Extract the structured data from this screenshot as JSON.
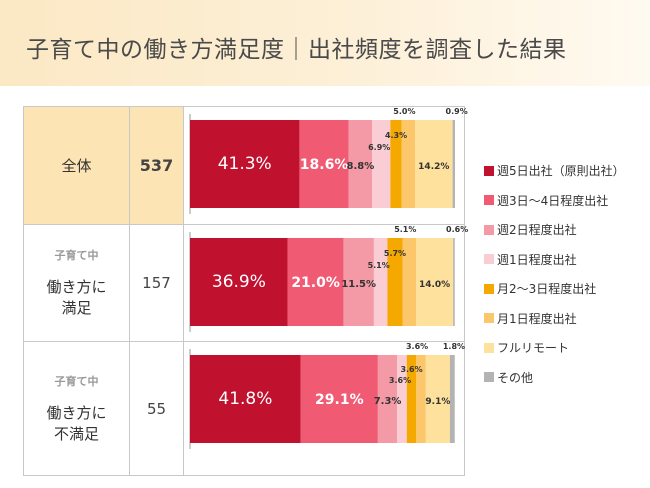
{
  "title": "子育て中の働き方満足度｜出社頻度を調査した結果",
  "rows": [
    {
      "sub": "",
      "main": "全体",
      "count": "537"
    },
    {
      "sub": "子育て中",
      "main": "働き方に\n満足",
      "count": "157"
    },
    {
      "sub": "子育て中",
      "main": "働き方に\n不満足",
      "count": "55"
    }
  ],
  "chart_data": {
    "type": "bar",
    "orientation": "horizontal",
    "stacked": true,
    "percent": true,
    "categories": [
      "全体",
      "子育て中 働き方に満足",
      "子育て中 働き方に不満足"
    ],
    "series": [
      {
        "name": "週5日出社（原則出社）",
        "color": "#c0122f",
        "values": [
          41.3,
          36.9,
          41.8
        ],
        "labels": [
          "41.3%",
          "36.9%",
          "41.8%"
        ]
      },
      {
        "name": "週3日〜4日程度出社",
        "color": "#f05a73",
        "values": [
          18.6,
          21.0,
          29.1
        ],
        "labels": [
          "18.6%",
          "21.0%",
          "29.1%"
        ]
      },
      {
        "name": "週2日程度出社",
        "color": "#f39aa6",
        "values": [
          8.8,
          11.5,
          7.3
        ],
        "labels": [
          "8.8%",
          "11.5%",
          "7.3%"
        ]
      },
      {
        "name": "週1日程度出社",
        "color": "#f9cdd3",
        "values": [
          6.9,
          5.1,
          3.6
        ],
        "labels": [
          "6.9%",
          "5.1%",
          "3.6%"
        ]
      },
      {
        "name": "月2〜3日程度出社",
        "color": "#f5a800",
        "values": [
          4.3,
          5.7,
          3.6
        ],
        "labels": [
          "4.3%",
          "5.7%",
          "3.6%"
        ]
      },
      {
        "name": "月1日程度出社",
        "color": "#fcc76b",
        "values": [
          5.0,
          5.1,
          3.6
        ],
        "labels": [
          "5.0%",
          "5.1%",
          "3.6%"
        ]
      },
      {
        "name": "フルリモート",
        "color": "#fde19c",
        "values": [
          14.2,
          14.0,
          9.1
        ],
        "labels": [
          "14.2%",
          "14.0%",
          "9.1%"
        ]
      },
      {
        "name": "その他",
        "color": "#b3b3b3",
        "values": [
          0.9,
          0.6,
          1.8
        ],
        "labels": [
          "0.9%",
          "0.6%",
          "1.8%"
        ]
      }
    ],
    "xlim": [
      0,
      100
    ],
    "legend": "right"
  }
}
